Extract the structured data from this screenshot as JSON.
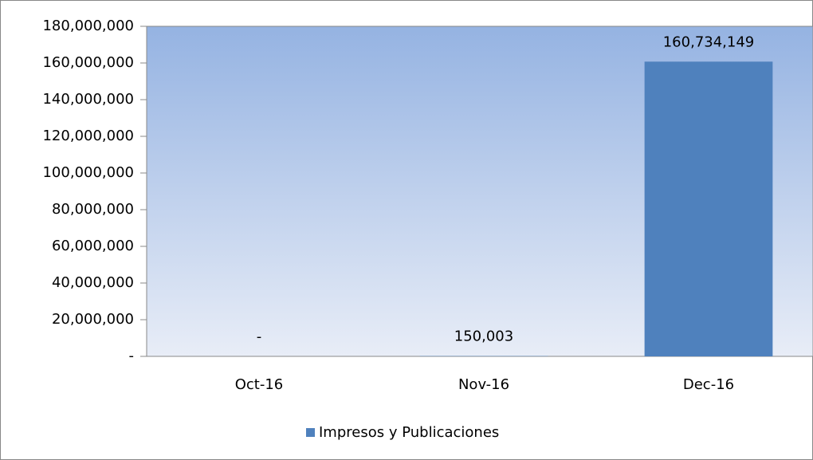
{
  "chart_data": {
    "type": "bar",
    "categories": [
      "Oct-16",
      "Nov-16",
      "Dec-16"
    ],
    "series": [
      {
        "name": "Impresos y Publicaciones",
        "color": "#4f81bd",
        "values": [
          0,
          150003,
          160734149
        ],
        "value_labels": [
          "-",
          "150,003",
          "160,734,149"
        ]
      }
    ],
    "ylim": [
      0,
      180000000
    ],
    "yticks": [
      {
        "value": 0,
        "label": "-"
      },
      {
        "value": 20000000,
        "label": "20,000,000"
      },
      {
        "value": 40000000,
        "label": "40,000,000"
      },
      {
        "value": 60000000,
        "label": "60,000,000"
      },
      {
        "value": 80000000,
        "label": "80,000,000"
      },
      {
        "value": 100000000,
        "label": "100,000,000"
      },
      {
        "value": 120000000,
        "label": "120,000,000"
      },
      {
        "value": 140000000,
        "label": "140,000,000"
      },
      {
        "value": 160000000,
        "label": "160,000,000"
      },
      {
        "value": 180000000,
        "label": "180,000,000"
      }
    ],
    "legend": "bottom"
  }
}
